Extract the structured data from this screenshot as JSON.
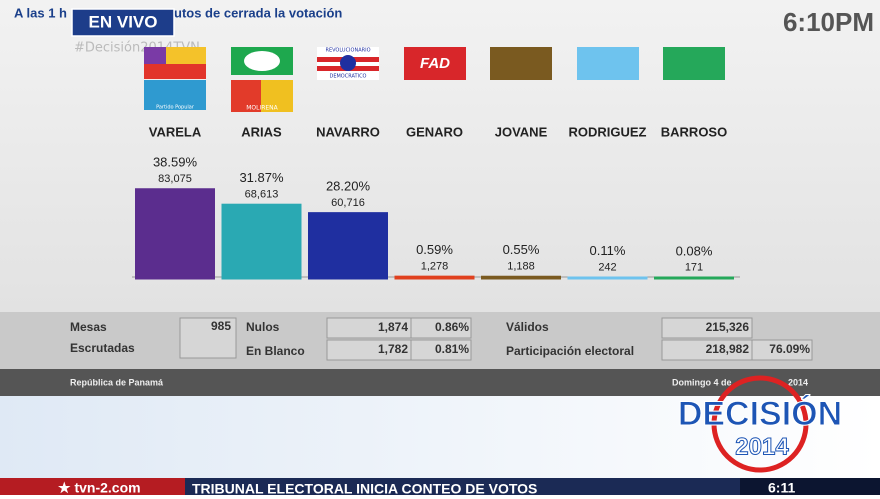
{
  "chart_data": {
    "type": "bar",
    "header_left": "A las 1 h",
    "header_right": "utos de cerrada la votación",
    "live_badge": "EN VIVO",
    "clock": "6:10PM",
    "hashtag": "#Decisión2014TVN",
    "categories": [
      "VARELA",
      "ARIAS",
      "NAVARRO",
      "GENARO",
      "JOVANE",
      "RODRIGUEZ",
      "BARROSO"
    ],
    "values": [
      38.59,
      31.87,
      28.2,
      0.59,
      0.55,
      0.11,
      0.08
    ],
    "value_labels": [
      "38.59%",
      "31.87%",
      "28.20%",
      "0.59%",
      "0.55%",
      "0.11%",
      "0.08%"
    ],
    "votes": [
      83075,
      68613,
      60716,
      1278,
      1188,
      242,
      171
    ],
    "vote_labels": [
      "83,075",
      "68,613",
      "60,716",
      "1,278",
      "1,188",
      "242",
      "171"
    ],
    "colors": [
      "#5b2d8e",
      "#2aa9b3",
      "#1f2fa0",
      "#e0401e",
      "#7a5a20",
      "#6ec3ee",
      "#25a85a"
    ]
  },
  "logos": {
    "fad": "FAD",
    "popular": "Partido Popular",
    "molirena": "MOLIRENA",
    "prd_top": "REVOLUCIONARIO",
    "prd_bottom": "DEMOCRATICO"
  },
  "stats": {
    "mesas_1": "Mesas",
    "mesas_2": "Escrutadas",
    "mesas_value": "985",
    "nulos": "Nulos",
    "nulos_value": "1,874",
    "nulos_pct": "0.86%",
    "blanco": "En Blanco",
    "blanco_value": "1,782",
    "blanco_pct": "0.81%",
    "validos": "Válidos",
    "validos_value": "215,326",
    "participacion": "Participación electoral",
    "participacion_value": "218,982",
    "participacion_pct": "76.09%"
  },
  "footer": {
    "country": "República de Panamá",
    "date_left": "Domingo 4 de",
    "date_right": "2014",
    "logo_top": "DECISIÓN",
    "logo_bottom": "2014",
    "ticker_site": "★ tvn-2.com",
    "ticker_text": "TRIBUNAL ELECTORAL INICIA CONTEO DE VOTOS",
    "ticker_time": "6:11"
  }
}
